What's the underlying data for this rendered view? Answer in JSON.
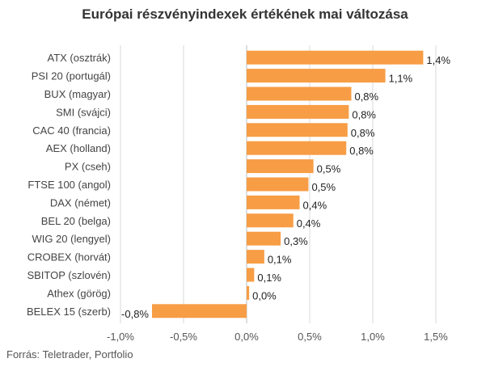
{
  "title": "Európai részvényindexek értékének mai változása",
  "source": "Forrás: Teletrader, Portfolio",
  "colors": {
    "bar": "#F79D45",
    "grid": "#d9d9d9",
    "axis": "#555555",
    "text": "#444444"
  },
  "chart_data": {
    "type": "bar",
    "orientation": "horizontal",
    "categories": [
      "ATX (osztrák)",
      "PSI 20 (portugál)",
      "BUX (magyar)",
      "SMI (svájci)",
      "CAC 40 (francia)",
      "AEX (holland)",
      "PX (cseh)",
      "FTSE 100 (angol)",
      "DAX (német)",
      "BEL 20 (belga)",
      "WIG 20 (lengyel)",
      "CROBEX (horvát)",
      "SBITOP (szlovén)",
      "Athex (görög)",
      "BELEX 15 (szerb)"
    ],
    "values": [
      1.4,
      1.1,
      0.83,
      0.81,
      0.8,
      0.79,
      0.53,
      0.49,
      0.42,
      0.37,
      0.27,
      0.14,
      0.06,
      0.02,
      -0.75
    ],
    "value_labels": [
      "1,4%",
      "1,1%",
      "0,8%",
      "0,8%",
      "0,8%",
      "0,8%",
      "0,5%",
      "0,5%",
      "0,4%",
      "0,4%",
      "0,3%",
      "0,1%",
      "0,1%",
      "0,0%",
      "-0,8%"
    ],
    "xlim": [
      -1.0,
      1.5
    ],
    "xticks": [
      -1.0,
      -0.5,
      0.0,
      0.5,
      1.0,
      1.5
    ],
    "xtick_labels": [
      "-1,0%",
      "-0,5%",
      "0,0%",
      "0,5%",
      "1,0%",
      "1,5%"
    ],
    "grid": true,
    "legend": "none"
  }
}
